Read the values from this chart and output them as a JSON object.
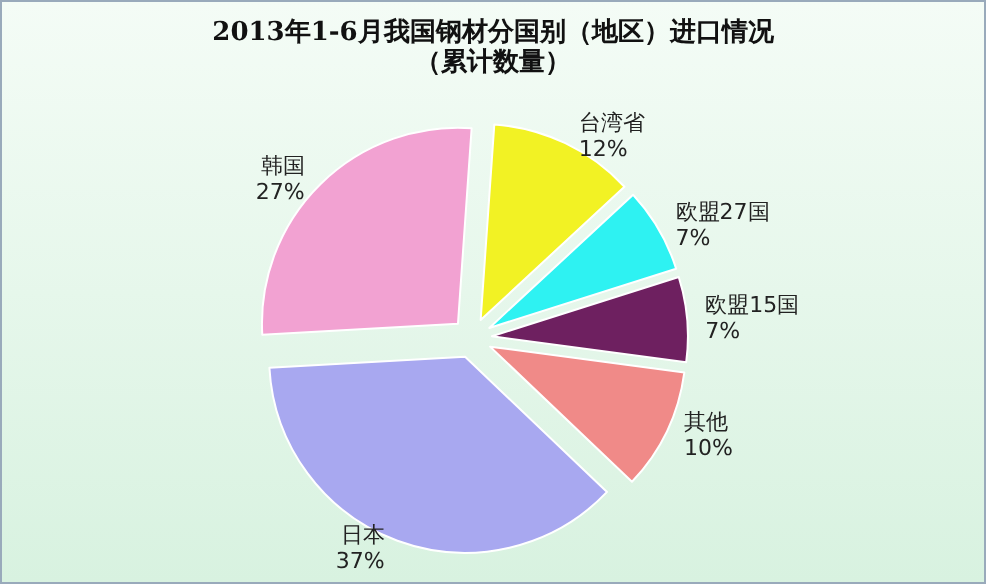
{
  "chart_data": {
    "type": "pie",
    "title": "2013年1-6月我国钢材分国别（地区）进口情况",
    "subtitle": "（累计数量）",
    "categories": [
      "台湾省",
      "欧盟27国",
      "欧盟15国",
      "其他",
      "日本",
      "韩国"
    ],
    "values": [
      12,
      7,
      7,
      10,
      37,
      27
    ],
    "colors": [
      "#f2f224",
      "#2ef2f2",
      "#6e2060",
      "#f08a88",
      "#a8a8f0",
      "#f2a2d2"
    ],
    "value_labels": [
      "12%",
      "7%",
      "7%",
      "10%",
      "37%",
      "27%"
    ],
    "legend": false
  }
}
